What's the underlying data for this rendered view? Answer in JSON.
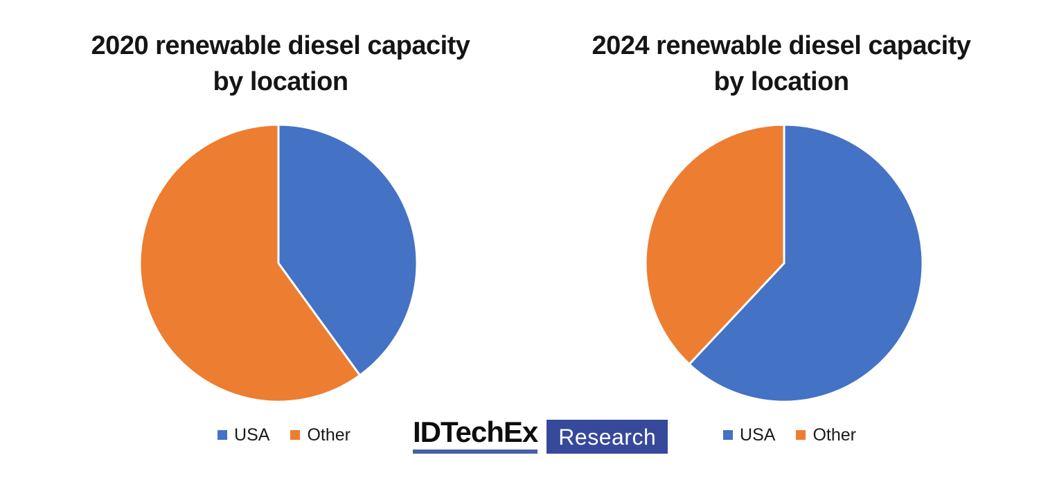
{
  "page": {
    "background": "#FFFFFF"
  },
  "charts": [
    {
      "title_line1": "2020 renewable diesel capacity",
      "title_line2": "by location"
    },
    {
      "title_line1": "2024 renewable diesel capacity",
      "title_line2": "by location"
    }
  ],
  "chart_data": [
    {
      "type": "pie",
      "title": "2020 renewable diesel capacity by location",
      "labels": [
        "USA",
        "Other"
      ],
      "values": [
        40,
        60
      ],
      "value_unit": "percent (estimated from slice angles; no data labels shown)",
      "colors": [
        "#4472C4",
        "#ED7D31"
      ],
      "start_angle_deg": 0,
      "direction": "clockwise",
      "slice_border_color": "#FFFFFF",
      "legend_position": "bottom"
    },
    {
      "type": "pie",
      "title": "2024 renewable diesel capacity by location",
      "labels": [
        "USA",
        "Other"
      ],
      "values": [
        62,
        38
      ],
      "value_unit": "percent (estimated from slice angles; no data labels shown)",
      "colors": [
        "#4472C4",
        "#ED7D31"
      ],
      "start_angle_deg": 0,
      "direction": "clockwise",
      "slice_border_color": "#FFFFFF",
      "legend_position": "bottom"
    }
  ],
  "logo": {
    "brand": "IDTechEx",
    "suffix": "Research",
    "brand_color": "#0D0D0D",
    "underline_color": "#4760A6",
    "box_color": "#36499B",
    "suffix_text_color": "#FFFFFF"
  }
}
